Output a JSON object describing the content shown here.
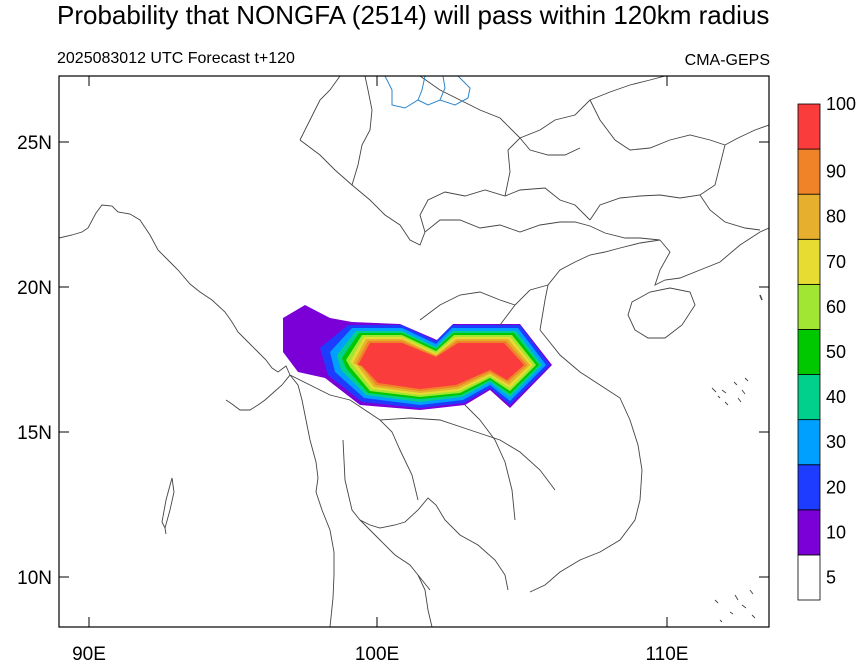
{
  "title": "Probability that NONGFA (2514) will pass within 120km radius",
  "subtitle_left": "2025083012 UTC Forecast t+120",
  "subtitle_right": "CMA-GEPS",
  "lon_ticks": [
    "90E",
    "100E",
    "110E"
  ],
  "lat_ticks": [
    "25N",
    "20N",
    "15N",
    "10N"
  ],
  "colorbar": {
    "labels": [
      "5",
      "10",
      "20",
      "30",
      "40",
      "50",
      "60",
      "70",
      "80",
      "90",
      "100"
    ],
    "colors": [
      "#ffffff",
      "#7b00d8",
      "#1e3cff",
      "#00a0ff",
      "#00d08c",
      "#00c800",
      "#a0e632",
      "#e6dc32",
      "#e6af2d",
      "#f08228",
      "#fa3c3c"
    ]
  }
}
